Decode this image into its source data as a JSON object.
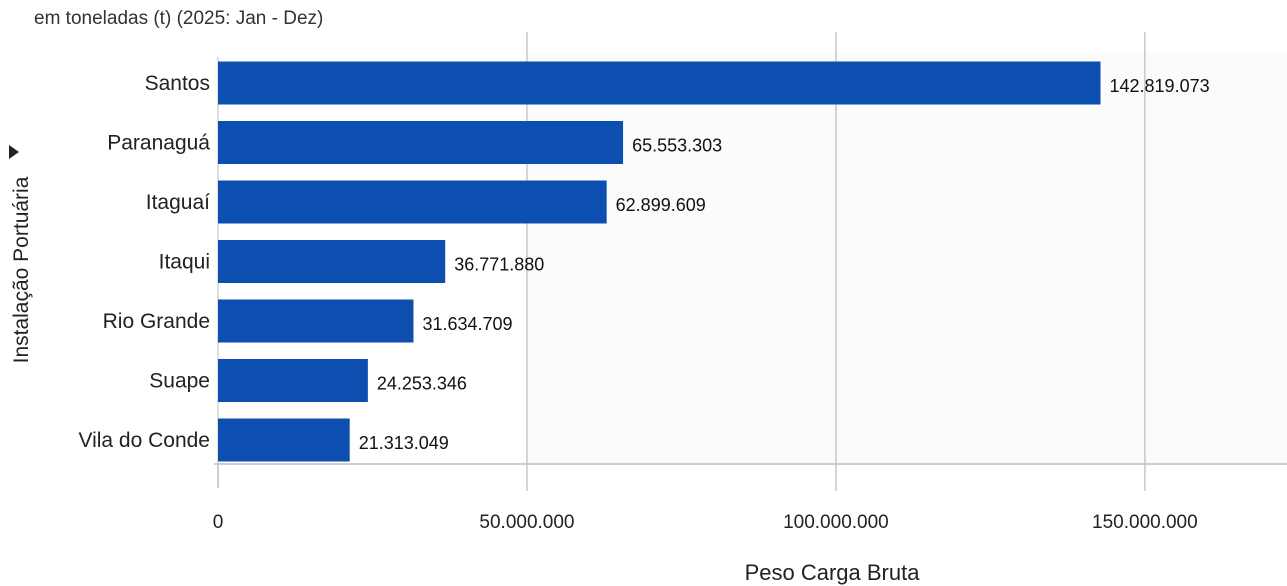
{
  "chart_data": {
    "type": "bar",
    "orientation": "horizontal",
    "subtitle": "em toneladas (t) (2025: Jan - Dez)",
    "ylabel": "Instalação Portuária",
    "xlabel": "Peso Carga Bruta",
    "categories": [
      "Santos",
      "Paranaguá",
      "Itaguaí",
      "Itaqui",
      "Rio Grande",
      "Suape",
      "Vila do Conde"
    ],
    "values": [
      142819073,
      65553303,
      62899609,
      36771880,
      31634709,
      24253346,
      21313049
    ],
    "value_labels": [
      "142.819.073",
      "65.553.303",
      "62.899.609",
      "36.771.880",
      "31.634.709",
      "24.253.346",
      "21.313.049"
    ],
    "xticks": [
      0,
      50000000,
      100000000,
      150000000
    ],
    "xtick_labels": [
      "0",
      "50.000.000",
      "100.000.000",
      "150.000.000"
    ],
    "xlim": [
      0,
      173000000
    ],
    "grid": true,
    "bar_color": "#0d4fb0",
    "grid_color": "#c8c8c8"
  }
}
